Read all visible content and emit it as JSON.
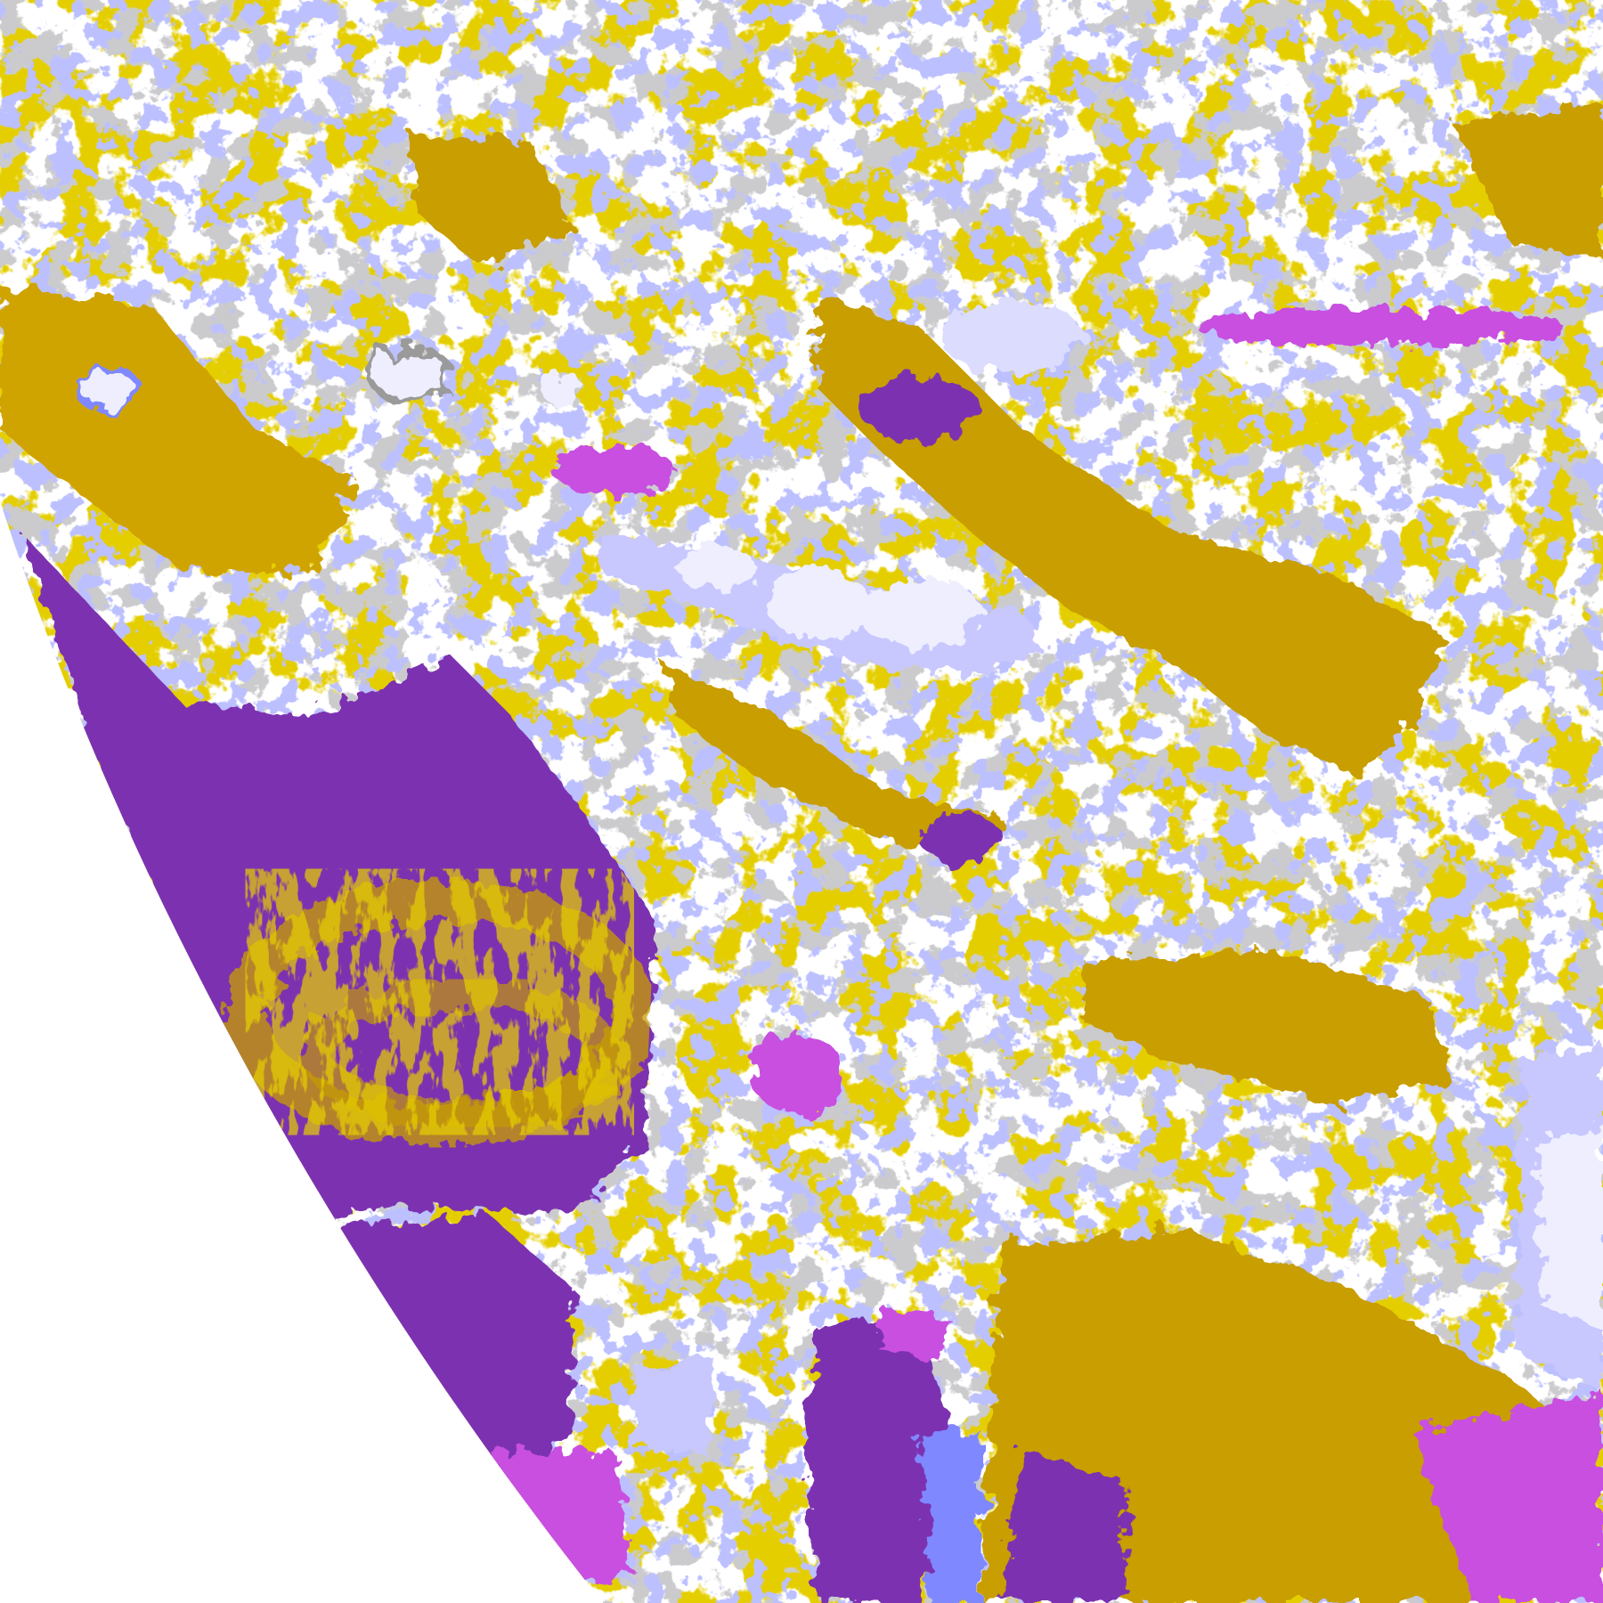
{
  "palette": {
    "background": "#ffffff",
    "ocean_purple": "#7b32b0",
    "gold": "#c89e00",
    "gold_light": "#d8ac10",
    "gray": "#9a9a9a",
    "blue": "#8088ff",
    "lavender": "#c8c8ff",
    "cloud_white": "#eeeeff",
    "magenta": "#c850e0"
  }
}
